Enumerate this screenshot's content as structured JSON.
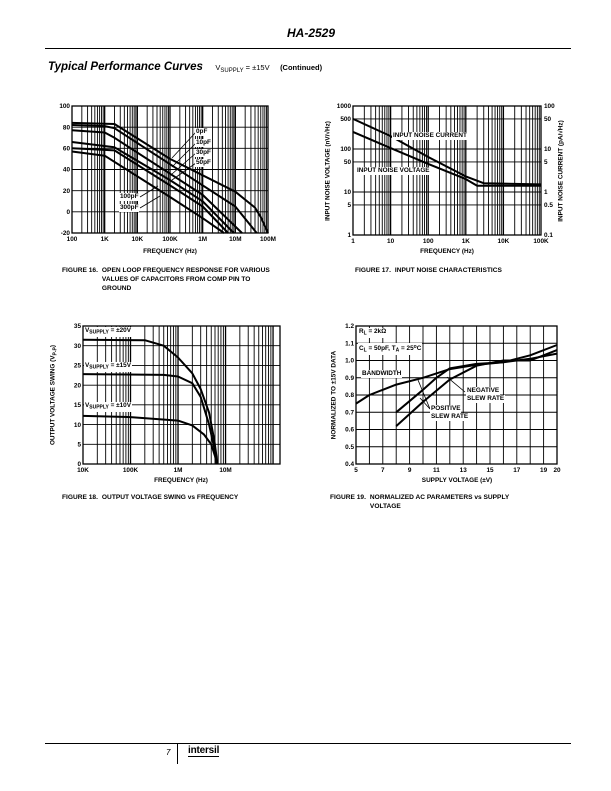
{
  "header": {
    "part_number": "HA-2529"
  },
  "section": {
    "title": "Typical Performance Curves",
    "cond_v": "V",
    "cond_sub": "SUPPLY",
    "cond_val": " = ±15V",
    "continued": "(Continued)"
  },
  "footer": {
    "page": "7",
    "logo": "intersil"
  },
  "figures": [
    {
      "number": "FIGURE 16.",
      "caption": "OPEN LOOP FREQUENCY RESPONSE FOR VARIOUS VALUES OF CAPACITORS FROM COMP PIN TO GROUND"
    },
    {
      "number": "FIGURE 17.",
      "caption": "INPUT NOISE CHARACTERISTICS"
    },
    {
      "number": "FIGURE 18.",
      "caption": "OUTPUT VOLTAGE SWING vs FREQUENCY"
    },
    {
      "number": "FIGURE 19.",
      "caption": "NORMALIZED AC PARAMETERS vs SUPPLY VOLTAGE"
    }
  ],
  "colors": {
    "ink": "#000000",
    "paper": "#ffffff"
  },
  "chart_data": [
    {
      "type": "line",
      "title": "Open Loop Frequency Response",
      "xlabel": "FREQUENCY (Hz)",
      "ylabel": "",
      "xscale": "log",
      "xlim": [
        100,
        100000000
      ],
      "ylim": [
        -20,
        100
      ],
      "grid": true,
      "xticks": [
        100,
        1000,
        10000,
        100000,
        1000000,
        10000000,
        100000000
      ],
      "xtick_labels": [
        "100",
        "1K",
        "10K",
        "100K",
        "1M",
        "10M",
        "100M"
      ],
      "yticks": [
        -20,
        0,
        20,
        40,
        60,
        80,
        100
      ],
      "ytick_labels": [
        "-20",
        "0",
        "20",
        "40",
        "60",
        "80",
        "100"
      ],
      "series": [
        {
          "name": "0pF",
          "points": [
            [
              100,
              84
            ],
            [
              2000,
              83
            ],
            [
              100000,
              50
            ],
            [
              10000000,
              19
            ],
            [
              40000000,
              4
            ],
            [
              60000000,
              -5
            ],
            [
              100000000,
              -20
            ]
          ]
        },
        {
          "name": "10pF",
          "points": [
            [
              100,
              82
            ],
            [
              1000,
              81
            ],
            [
              2000,
              79
            ],
            [
              100000,
              45
            ],
            [
              10000000,
              5
            ],
            [
              45000000,
              -20
            ]
          ]
        },
        {
          "name": "30pF",
          "points": [
            [
              100,
              77
            ],
            [
              1000,
              75
            ],
            [
              2000,
              70
            ],
            [
              100000,
              36
            ],
            [
              1000000,
              16
            ],
            [
              16000000,
              -20
            ]
          ]
        },
        {
          "name": "50pF",
          "points": [
            [
              100,
              66
            ],
            [
              2000,
              61
            ],
            [
              100000,
              30
            ],
            [
              1000000,
              10
            ],
            [
              9000000,
              -20
            ]
          ]
        },
        {
          "name": "100pF",
          "points": [
            [
              100,
              60
            ],
            [
              2000,
              58
            ],
            [
              100000,
              25
            ],
            [
              1000000,
              5
            ],
            [
              6000000,
              -20
            ]
          ]
        },
        {
          "name": "300pF",
          "points": [
            [
              100,
              57
            ],
            [
              1000,
              53
            ],
            [
              100000,
              14
            ],
            [
              1000000,
              -6
            ],
            [
              4500000,
              -20
            ]
          ]
        }
      ],
      "annotations": [
        "0pF",
        "10pF",
        "30pF",
        "50pF",
        "100pF",
        "300pF"
      ]
    },
    {
      "type": "line",
      "title": "Input Noise Characteristics",
      "xlabel": "FREQUENCY (Hz)",
      "ylabel": "INPUT NOISE VOLTAGE (nV/√Hz)",
      "ylabel_right": "INPUT NOISE CURRENT (pA/√Hz)",
      "xscale": "log",
      "yscale": "log",
      "xlim": [
        1,
        100000
      ],
      "ylim": [
        1,
        1000
      ],
      "ylim_right": [
        0.1,
        100
      ],
      "grid": true,
      "xticks": [
        1,
        10,
        100,
        1000,
        10000,
        100000
      ],
      "xtick_labels": [
        "1",
        "10",
        "100",
        "1K",
        "10K",
        "100K"
      ],
      "yticks": [
        1,
        5,
        10,
        50,
        100,
        500,
        1000
      ],
      "ytick_labels": [
        "1",
        "5",
        "10",
        "50",
        "100",
        "500",
        "1000"
      ],
      "yticks_right": [
        0.1,
        0.5,
        1,
        5,
        10,
        50,
        100
      ],
      "ytick_labels_right": [
        "0.1",
        "0.5",
        "1",
        "5",
        "10",
        "50",
        "100"
      ],
      "series": [
        {
          "name": "INPUT NOISE CURRENT",
          "axis": "right",
          "points": [
            [
              1,
              50
            ],
            [
              10,
              20
            ],
            [
              100,
              6.5
            ],
            [
              1000,
              2.3
            ],
            [
              3000,
              1.6
            ],
            [
              100000,
              1.5
            ]
          ]
        },
        {
          "name": "INPUT NOISE VOLTAGE",
          "axis": "left",
          "points": [
            [
              1,
              250
            ],
            [
              10,
              105
            ],
            [
              100,
              45
            ],
            [
              1000,
              20
            ],
            [
              2000,
              14
            ],
            [
              100000,
              14
            ]
          ]
        }
      ]
    },
    {
      "type": "line",
      "title": "Output Voltage Swing vs Frequency",
      "xlabel": "FREQUENCY (Hz)",
      "ylabel": "OUTPUT VOLTAGE SWING (V",
      "ylabel_sub": "P-P",
      "ylabel_end": ")",
      "xscale": "log",
      "xlim": [
        10000,
        140000000
      ],
      "ylim": [
        0,
        35
      ],
      "grid": true,
      "xticks": [
        10000,
        100000,
        1000000,
        10000000
      ],
      "xtick_labels": [
        "10K",
        "100K",
        "1M",
        "10M"
      ],
      "yticks": [
        0,
        5,
        10,
        15,
        20,
        25,
        30,
        35
      ],
      "ytick_labels": [
        "0",
        "5",
        "10",
        "15",
        "20",
        "25",
        "30",
        "35"
      ],
      "series": [
        {
          "name": "VSUPPLY = ±20V",
          "label_v": "V",
          "label_sub": "SUPPLY",
          "label_val": " = ±20V",
          "points": [
            [
              10000,
              31.5
            ],
            [
              200000,
              31.4
            ],
            [
              500000,
              30
            ],
            [
              1000000,
              27
            ],
            [
              2000000,
              23
            ],
            [
              3000000,
              19
            ],
            [
              4500000,
              13
            ],
            [
              5800000,
              6
            ],
            [
              6500000,
              1.5
            ],
            [
              6800000,
              0
            ]
          ]
        },
        {
          "name": "VSUPPLY = ±15V",
          "label_v": "V",
          "label_sub": "SUPPLY",
          "label_val": " = ±15V",
          "points": [
            [
              10000,
              22.8
            ],
            [
              500000,
              22.6
            ],
            [
              1000000,
              22.2
            ],
            [
              2000000,
              20.5
            ],
            [
              3000000,
              17
            ],
            [
              4500000,
              10
            ],
            [
              5800000,
              4
            ],
            [
              6500000,
              0
            ]
          ]
        },
        {
          "name": "VSUPPLY = ±10V",
          "label_v": "V",
          "label_sub": "SUPPLY",
          "label_val": " = ±10V",
          "points": [
            [
              10000,
              12.2
            ],
            [
              100000,
              11.9
            ],
            [
              1000000,
              11
            ],
            [
              2000000,
              9.8
            ],
            [
              3500000,
              7.5
            ],
            [
              5000000,
              5
            ],
            [
              6000000,
              2
            ],
            [
              6500000,
              0
            ]
          ]
        }
      ]
    },
    {
      "type": "line",
      "title": "Normalized AC Parameters vs Supply Voltage",
      "xlabel": "SUPPLY VOLTAGE (±V)",
      "ylabel": "NORMALIZED TO ±15V DATA",
      "xlim": [
        5,
        20
      ],
      "ylim": [
        0.4,
        1.2
      ],
      "grid": true,
      "xticks": [
        5,
        7,
        9,
        11,
        13,
        15,
        17,
        19,
        20
      ],
      "xtick_labels": [
        "5",
        "7",
        "9",
        "11",
        "13",
        "15",
        "17",
        "19",
        "20"
      ],
      "yticks": [
        0.4,
        0.5,
        0.6,
        0.7,
        0.8,
        0.9,
        1.0,
        1.1,
        1.2
      ],
      "ytick_labels": [
        "0.4",
        "0.5",
        "0.6",
        "0.7",
        "0.8",
        "0.9",
        "1.0",
        "1.1",
        "1.2"
      ],
      "conditions": {
        "rl_r": "R",
        "rl_sub": "L",
        "rl_val": " = 2kΩ",
        "cl_c": "C",
        "cl_sub": "L",
        "cl_val": " = 50pF, T",
        "ta_sub": "A",
        "ta_val": " = 25",
        "ta_deg": "o",
        "ta_unit": "C"
      },
      "series": [
        {
          "name": "BANDWIDTH",
          "points": [
            [
              5,
              0.75
            ],
            [
              6,
              0.8
            ],
            [
              7,
              0.83
            ],
            [
              8,
              0.86
            ],
            [
              10,
              0.9
            ],
            [
              12,
              0.95
            ],
            [
              14,
              0.975
            ],
            [
              16,
              0.99
            ],
            [
              18,
              1.01
            ],
            [
              20,
              1.04
            ]
          ]
        },
        {
          "name": "POSITIVE SLEW RATE",
          "points": [
            [
              8,
              0.7
            ],
            [
              10,
              0.83
            ],
            [
              11,
              0.9
            ],
            [
              12,
              0.955
            ],
            [
              14,
              0.98
            ],
            [
              16,
              0.99
            ],
            [
              18,
              1.03
            ],
            [
              20,
              1.09
            ]
          ]
        },
        {
          "name": "NEGATIVE SLEW RATE",
          "points": [
            [
              8,
              0.62
            ],
            [
              10,
              0.76
            ],
            [
              12,
              0.89
            ],
            [
              14,
              0.97
            ],
            [
              16,
              1.0
            ],
            [
              18,
              1.0
            ],
            [
              19,
              1.03
            ],
            [
              20,
              1.06
            ]
          ]
        }
      ],
      "annotations": [
        "BANDWIDTH",
        "NEGATIVE",
        "SLEW RATE",
        "POSITIVE",
        "SLEW RATE"
      ]
    }
  ]
}
